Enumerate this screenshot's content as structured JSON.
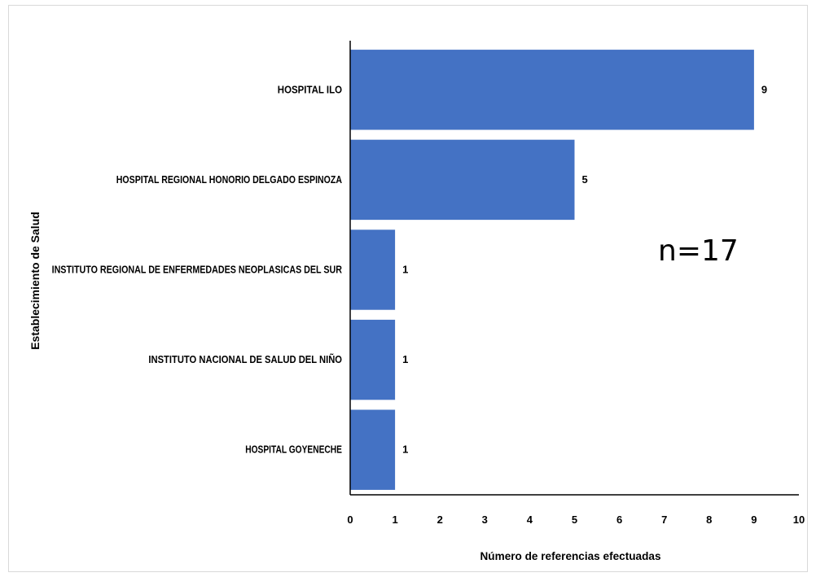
{
  "chart_data": {
    "type": "bar",
    "orientation": "horizontal",
    "title": "",
    "xlabel": "Número de referencias efectuadas",
    "ylabel": "Establecimiento de Salud",
    "xlim": [
      0,
      10
    ],
    "xticks": [
      "0",
      "1",
      "2",
      "3",
      "4",
      "5",
      "6",
      "7",
      "8",
      "9",
      "10"
    ],
    "categories": [
      "HOSPITAL ILO",
      "HOSPITAL REGIONAL HONORIO DELGADO ESPINOZA",
      "INSTITUTO REGIONAL DE ENFERMEDADES NEOPLASICAS DEL SUR",
      "INSTITUTO NACIONAL DE SALUD DEL NIÑO",
      "HOSPITAL GOYENECHE"
    ],
    "values": [
      9,
      5,
      1,
      1,
      1
    ],
    "data_labels": [
      "9",
      "5",
      "1",
      "1",
      "1"
    ],
    "annotation": "n=17",
    "bar_color": "#4472c4",
    "grid": false,
    "legend": "none"
  }
}
